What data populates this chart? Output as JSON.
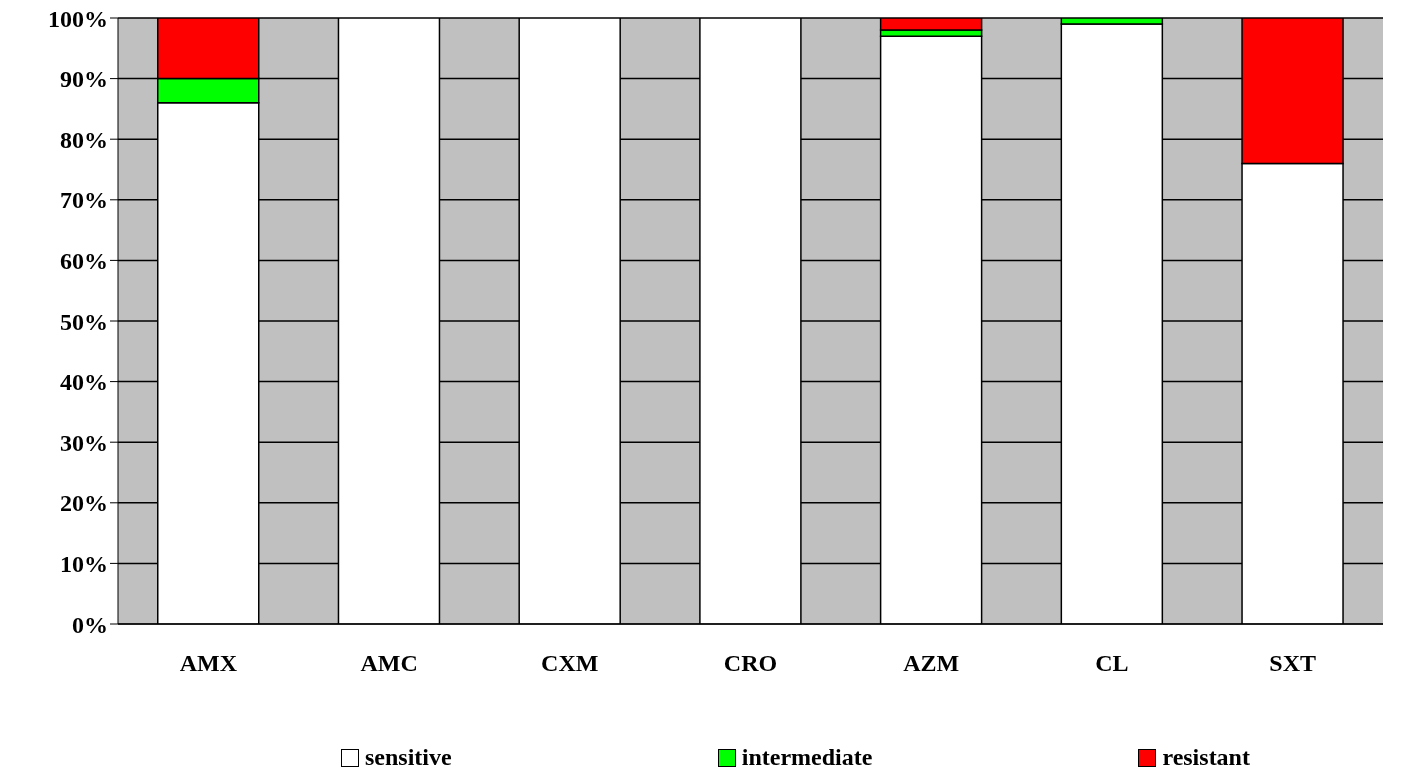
{
  "chart_data": {
    "type": "bar",
    "stacked": true,
    "categories": [
      "AMX",
      "AMC",
      "CXM",
      "CRO",
      "AZM",
      "CL",
      "SXT"
    ],
    "series": [
      {
        "name": "sensitive",
        "color": "#ffffff",
        "values": [
          86,
          100,
          100,
          100,
          97,
          99,
          76
        ]
      },
      {
        "name": "intermediate",
        "color": "#00ff00",
        "values": [
          4,
          0,
          0,
          0,
          1,
          1,
          0
        ]
      },
      {
        "name": "resistant",
        "color": "#ff0000",
        "values": [
          10,
          0,
          0,
          0,
          2,
          0,
          24
        ]
      }
    ],
    "ylim": [
      0,
      100
    ],
    "yticks": [
      {
        "value": 0,
        "label": "0%"
      },
      {
        "value": 10,
        "label": "10%"
      },
      {
        "value": 20,
        "label": "20%"
      },
      {
        "value": 30,
        "label": "30%"
      },
      {
        "value": 40,
        "label": "40%"
      },
      {
        "value": 50,
        "label": "50%"
      },
      {
        "value": 60,
        "label": "60%"
      },
      {
        "value": 70,
        "label": "70%"
      },
      {
        "value": 80,
        "label": "80%"
      },
      {
        "value": 90,
        "label": "90%"
      },
      {
        "value": 100,
        "label": "100%"
      }
    ],
    "grid": "y",
    "legend": "bottom"
  }
}
